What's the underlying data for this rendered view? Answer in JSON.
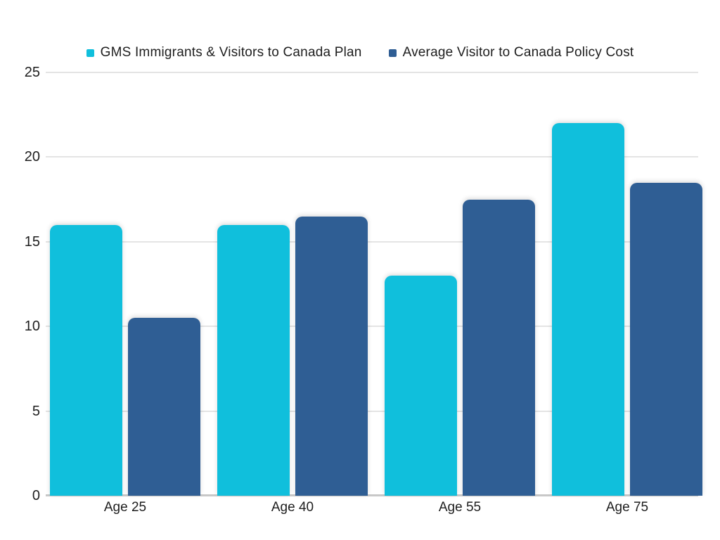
{
  "chart_data": {
    "type": "bar",
    "categories": [
      "Age 25",
      "Age 40",
      "Age 55",
      "Age 75"
    ],
    "series": [
      {
        "name": "GMS Immigrants & Visitors to Canada Plan",
        "color": "#10BFDC",
        "values": [
          16,
          16,
          13,
          22
        ]
      },
      {
        "name": "Average Visitor to Canada Policy Cost",
        "color": "#2F5E94",
        "values": [
          10.5,
          16.5,
          17.5,
          18.5
        ]
      }
    ],
    "title": "",
    "xlabel": "",
    "ylabel": "",
    "ylim": [
      0,
      25
    ],
    "yticks": [
      0,
      5,
      10,
      15,
      20,
      25
    ],
    "grid": true,
    "legend_position": "top"
  },
  "colors": {
    "background": "#ffffff",
    "grid": "#e4e4e4",
    "axis": "#c8c8c8",
    "text": "#1e1e1e"
  }
}
